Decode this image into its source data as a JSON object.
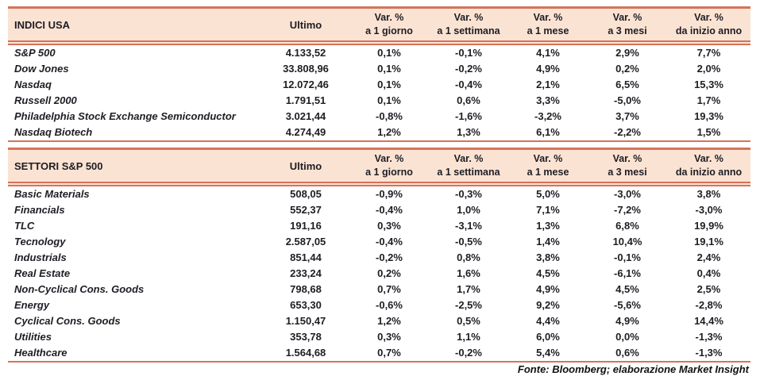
{
  "colors": {
    "accent_line": "#d5735a",
    "band_background": "#fbe3d3",
    "text": "#1d1d24"
  },
  "columns": {
    "ultimo_label": "Ultimo",
    "var_label": "Var. %",
    "periods": [
      "a 1 giorno",
      "a 1 settimana",
      "a 1 mese",
      "a 3 mesi",
      "da inizio anno"
    ]
  },
  "tables": [
    {
      "title": "INDICI USA",
      "rows": [
        {
          "label": "S&P 500",
          "values": [
            "4.133,52",
            "0,1%",
            "-0,1%",
            "4,1%",
            "2,9%",
            "7,7%"
          ]
        },
        {
          "label": "Dow Jones",
          "values": [
            "33.808,96",
            "0,1%",
            "-0,2%",
            "4,9%",
            "0,2%",
            "2,0%"
          ]
        },
        {
          "label": "Nasdaq",
          "values": [
            "12.072,46",
            "0,1%",
            "-0,4%",
            "2,1%",
            "6,5%",
            "15,3%"
          ]
        },
        {
          "label": "Russell 2000",
          "values": [
            "1.791,51",
            "0,1%",
            "0,6%",
            "3,3%",
            "-5,0%",
            "1,7%"
          ]
        },
        {
          "label": "Philadelphia Stock Exchange Semiconductor",
          "values": [
            "3.021,44",
            "-0,8%",
            "-1,6%",
            "-3,2%",
            "3,7%",
            "19,3%"
          ]
        },
        {
          "label": "Nasdaq Biotech",
          "values": [
            "4.274,49",
            "1,2%",
            "1,3%",
            "6,1%",
            "-2,2%",
            "1,5%"
          ]
        }
      ]
    },
    {
      "title": "SETTORI S&P 500",
      "rows": [
        {
          "label": "Basic Materials",
          "values": [
            "508,05",
            "-0,9%",
            "-0,3%",
            "5,0%",
            "-3,0%",
            "3,8%"
          ]
        },
        {
          "label": "Financials",
          "values": [
            "552,37",
            "-0,4%",
            "1,0%",
            "7,1%",
            "-7,2%",
            "-3,0%"
          ]
        },
        {
          "label": "TLC",
          "values": [
            "191,16",
            "0,3%",
            "-3,1%",
            "1,3%",
            "6,8%",
            "19,9%"
          ]
        },
        {
          "label": "Tecnology",
          "values": [
            "2.587,05",
            "-0,4%",
            "-0,5%",
            "1,4%",
            "10,4%",
            "19,1%"
          ]
        },
        {
          "label": "Industrials",
          "values": [
            "851,44",
            "-0,2%",
            "0,8%",
            "3,8%",
            "-0,1%",
            "2,4%"
          ]
        },
        {
          "label": "Real Estate",
          "values": [
            "233,24",
            "0,2%",
            "1,6%",
            "4,5%",
            "-6,1%",
            "0,4%"
          ]
        },
        {
          "label": "Non-Cyclical Cons. Goods",
          "values": [
            "798,68",
            "0,7%",
            "1,7%",
            "4,9%",
            "4,5%",
            "2,5%"
          ]
        },
        {
          "label": "Energy",
          "values": [
            "653,30",
            "-0,6%",
            "-2,5%",
            "9,2%",
            "-5,6%",
            "-2,8%"
          ]
        },
        {
          "label": "Cyclical Cons. Goods",
          "values": [
            "1.150,47",
            "1,2%",
            "0,5%",
            "4,4%",
            "4,9%",
            "14,4%"
          ]
        },
        {
          "label": "Utilities",
          "values": [
            "353,78",
            "0,3%",
            "1,1%",
            "6,0%",
            "0,0%",
            "-1,3%"
          ]
        },
        {
          "label": "Healthcare",
          "values": [
            "1.564,68",
            "0,7%",
            "-0,2%",
            "5,4%",
            "0,6%",
            "-1,3%"
          ]
        }
      ]
    }
  ],
  "footer": {
    "source_note": "Fonte: Bloomberg; elaborazione Market Insight"
  }
}
